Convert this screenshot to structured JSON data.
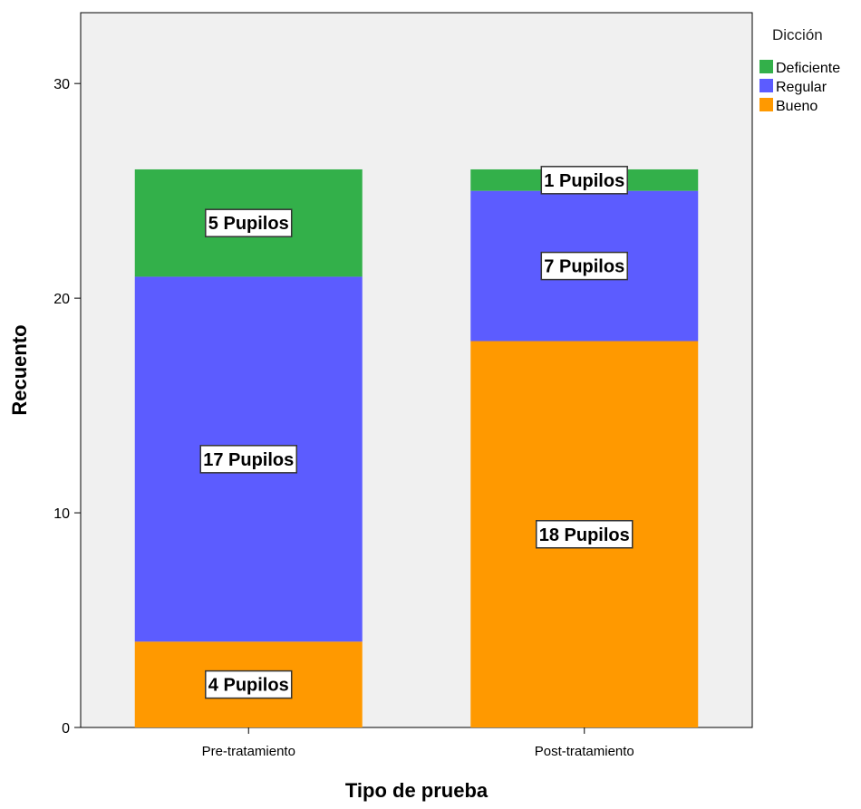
{
  "chart_data": {
    "type": "bar",
    "stacked": true,
    "title": "",
    "xlabel": "Tipo de prueba",
    "ylabel": "Recuento",
    "categories": [
      "Pre-tratamiento",
      "Post-tratamiento"
    ],
    "series": [
      {
        "name": "Bueno",
        "color": "#ff9900",
        "values": [
          4,
          18
        ],
        "labels": [
          "4 Pupilos",
          "18 Pupilos"
        ]
      },
      {
        "name": "Regular",
        "color": "#5c5cff",
        "values": [
          17,
          7
        ],
        "labels": [
          "17 Pupilos",
          "7 Pupilos"
        ]
      },
      {
        "name": "Deficiente",
        "color": "#33b04a",
        "values": [
          5,
          1
        ],
        "labels": [
          "5 Pupilos",
          "1 Pupilos"
        ]
      }
    ],
    "ylim": [
      0,
      33.3
    ],
    "yticks": [
      0,
      10,
      20,
      30
    ],
    "grid": false,
    "legend": {
      "title": "Dicción",
      "placement": "top-right",
      "order": [
        "Deficiente",
        "Regular",
        "Bueno"
      ]
    },
    "plot_background": "#f0f0f0"
  }
}
